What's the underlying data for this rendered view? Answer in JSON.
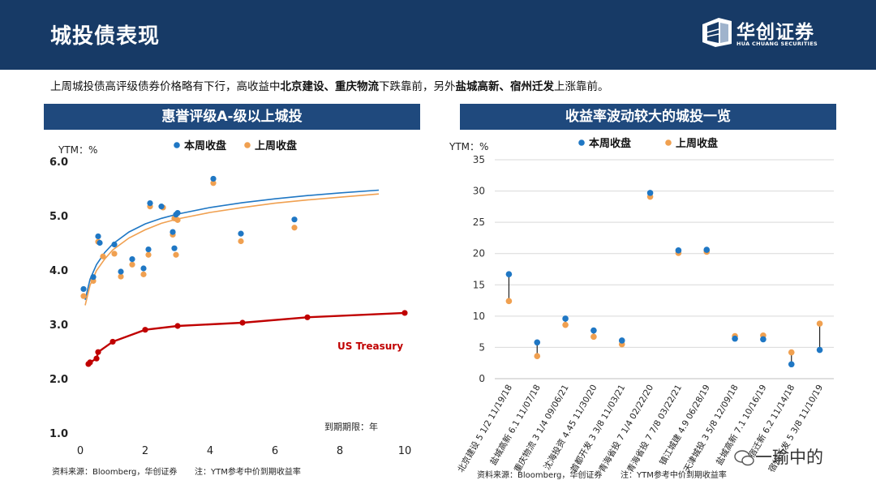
{
  "page": {
    "title": "城投债表现",
    "logo_cn": "华创证券",
    "logo_en": "HUA CHUANG SECURITIES",
    "summary": {
      "s1": "上周城投债高评级债券价格略有下行，高收益中",
      "b1": "北京建设、重庆物流",
      "s2": "下跌靠前，另外",
      "b2": "盐城高新、宿州迁发",
      "s3": "上涨靠前。"
    },
    "watermark": "一瑜中的"
  },
  "colors": {
    "header_bg": "#173a66",
    "panel_bg": "#1f497d",
    "this_week": "#1f77c4",
    "last_week": "#f0a050",
    "treasury": "#c00000",
    "connector": "#222222"
  },
  "left_panel": {
    "heading": "惠誉评级A-级以上城投",
    "source": "资料来源：Bloomberg，华创证券",
    "note": "注：YTM参考中价到期收益率"
  },
  "right_panel": {
    "heading": "收益率波动较大的城投一览",
    "source": "资料来源：Bloomberg，华创证券",
    "note": "注：YTM参考中价到期收益率"
  },
  "chart_data": [
    {
      "type": "scatter",
      "title": "惠誉评级A-级以上城投",
      "ylabel": "YTM：%",
      "xlabel": "到期期限：年",
      "xlim": [
        0,
        10
      ],
      "ylim": [
        1.0,
        6.0
      ],
      "xticks": [
        "0",
        "2",
        "4",
        "6",
        "8",
        "10"
      ],
      "yticks": [
        "1.0",
        "2.0",
        "3.0",
        "4.0",
        "5.0",
        "6.0"
      ],
      "legend": [
        "本周收盘",
        "上周收盘"
      ],
      "series": [
        {
          "name": "本周收盘",
          "points": [
            [
              0.1,
              3.65
            ],
            [
              0.4,
              3.87
            ],
            [
              0.55,
              4.62
            ],
            [
              0.6,
              4.5
            ],
            [
              1.05,
              4.47
            ],
            [
              1.25,
              3.97
            ],
            [
              1.6,
              4.2
            ],
            [
              1.95,
              4.03
            ],
            [
              2.1,
              4.38
            ],
            [
              2.15,
              5.23
            ],
            [
              2.5,
              5.17
            ],
            [
              2.85,
              4.7
            ],
            [
              2.9,
              4.4
            ],
            [
              2.95,
              5.02
            ],
            [
              3.0,
              5.05
            ],
            [
              4.1,
              5.68
            ],
            [
              4.95,
              4.67
            ],
            [
              6.6,
              4.93
            ]
          ]
        },
        {
          "name": "上周收盘",
          "points": [
            [
              0.1,
              3.52
            ],
            [
              0.4,
              3.8
            ],
            [
              0.55,
              4.52
            ],
            [
              0.7,
              4.25
            ],
            [
              1.05,
              4.3
            ],
            [
              1.25,
              3.88
            ],
            [
              1.6,
              4.1
            ],
            [
              1.95,
              3.92
            ],
            [
              2.1,
              4.28
            ],
            [
              2.15,
              5.17
            ],
            [
              2.55,
              5.15
            ],
            [
              2.85,
              4.65
            ],
            [
              2.95,
              4.28
            ],
            [
              2.9,
              4.95
            ],
            [
              3.0,
              4.92
            ],
            [
              4.1,
              5.6
            ],
            [
              4.95,
              4.53
            ],
            [
              6.6,
              4.78
            ]
          ]
        }
      ],
      "trendlines": [
        {
          "name": "本周收盘趋势",
          "x": [
            0.15,
            0.3,
            0.5,
            0.75,
            1,
            1.5,
            2,
            2.5,
            3,
            4,
            5,
            6,
            7,
            8,
            9.2
          ],
          "y": [
            3.45,
            3.83,
            4.1,
            4.32,
            4.48,
            4.7,
            4.85,
            4.95,
            5.03,
            5.15,
            5.24,
            5.31,
            5.37,
            5.42,
            5.47
          ]
        },
        {
          "name": "上周收盘趋势",
          "x": [
            0.15,
            0.3,
            0.5,
            0.75,
            1,
            1.5,
            2,
            2.5,
            3,
            4,
            5,
            6,
            7,
            8,
            9.2
          ],
          "y": [
            3.35,
            3.72,
            3.99,
            4.2,
            4.37,
            4.59,
            4.74,
            4.86,
            4.94,
            5.06,
            5.15,
            5.23,
            5.29,
            5.34,
            5.4
          ]
        }
      ],
      "treasury": {
        "name": "US Treasury",
        "x": [
          0.25,
          0.3,
          0.5,
          0.55,
          1,
          2,
          3,
          5,
          7,
          10
        ],
        "y": [
          2.27,
          2.3,
          2.37,
          2.49,
          2.68,
          2.9,
          2.97,
          3.03,
          3.13,
          3.21
        ]
      }
    },
    {
      "type": "scatter",
      "title": "收益率波动较大的城投一览",
      "ylabel": "YTM：%",
      "ylim": [
        0,
        35
      ],
      "yticks": [
        "0",
        "5",
        "10",
        "15",
        "20",
        "25",
        "30",
        "35"
      ],
      "legend": [
        "本周收盘",
        "上周收盘"
      ],
      "categories": [
        "北京建设 5 1/2 11/19/18",
        "盐城高新 6.1 11/07/18",
        "重庆物流 3 1/4 09/06/21",
        "沈海投资 4.45 11/30/20",
        "首都开发 3 3/8 11/03/21",
        "青海省投 7 1/4 02/22/20",
        "青海省投 7 7/8 03/22/21",
        "镇江城建 4.9 06/28/19",
        "天津城投 3 5/8 12/09/18",
        "盐城高新 7.1 10/16/19",
        "宿迁新 6.2 11/14/18",
        "宿州迁发 5 3/8 11/10/19"
      ],
      "series": [
        {
          "name": "本周收盘",
          "values": [
            16.7,
            5.8,
            9.6,
            7.7,
            6.1,
            29.7,
            20.5,
            20.6,
            6.4,
            6.3,
            2.3,
            4.6
          ]
        },
        {
          "name": "上周收盘",
          "values": [
            12.4,
            3.6,
            8.6,
            6.7,
            5.5,
            29.1,
            20.1,
            20.3,
            6.8,
            6.9,
            4.2,
            8.8
          ]
        }
      ]
    }
  ]
}
